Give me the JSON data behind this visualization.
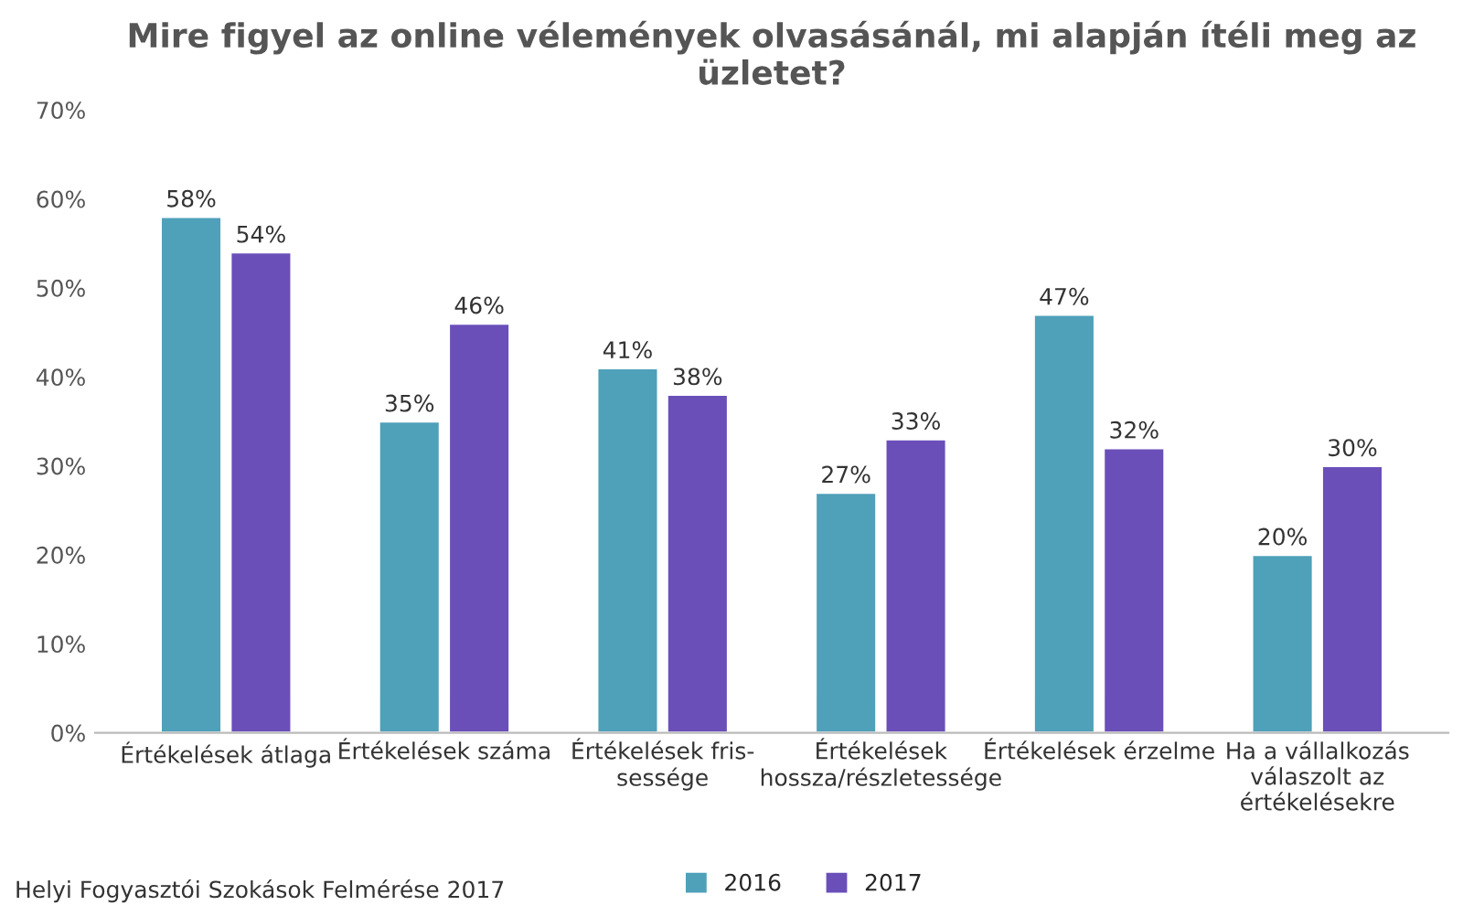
{
  "chart_data": {
    "type": "bar",
    "title": "Mire figyel az online vélemények olvasásánál, mi alapján ítéli meg az üzletet?",
    "categories": [
      "Értékelések átlaga",
      "Értékelések száma",
      "Értékelések fris-\nsessége",
      "Értékelések\nhossza/részletessége",
      "Értékelések érzelme",
      "Ha a vállalkozás\nválaszolt az\nértékelésekre"
    ],
    "series": [
      {
        "name": "2016",
        "color": "#4fa0b9",
        "values": [
          58,
          35,
          41,
          27,
          47,
          20
        ],
        "value_labels": [
          "58%",
          "35%",
          "41%",
          "27%",
          "47%",
          "20%"
        ]
      },
      {
        "name": "2017",
        "color": "#6a4fb9",
        "values": [
          54,
          46,
          38,
          33,
          32,
          30
        ],
        "value_labels": [
          "54%",
          "46%",
          "38%",
          "33%",
          "32%",
          "30%"
        ]
      }
    ],
    "ylim": [
      0,
      70
    ],
    "yticks": [
      {
        "value": 0,
        "label": "0%"
      },
      {
        "value": 10,
        "label": "10%"
      },
      {
        "value": 20,
        "label": "20%"
      },
      {
        "value": 30,
        "label": "30%"
      },
      {
        "value": 40,
        "label": "40%"
      },
      {
        "value": 50,
        "label": "50%"
      },
      {
        "value": 60,
        "label": "60%"
      },
      {
        "value": 70,
        "label": "70%"
      }
    ],
    "grid": false,
    "legend": "bottom",
    "annotations": [
      "Helyi Fogyasztói Szokások Felmérése 2017"
    ]
  }
}
